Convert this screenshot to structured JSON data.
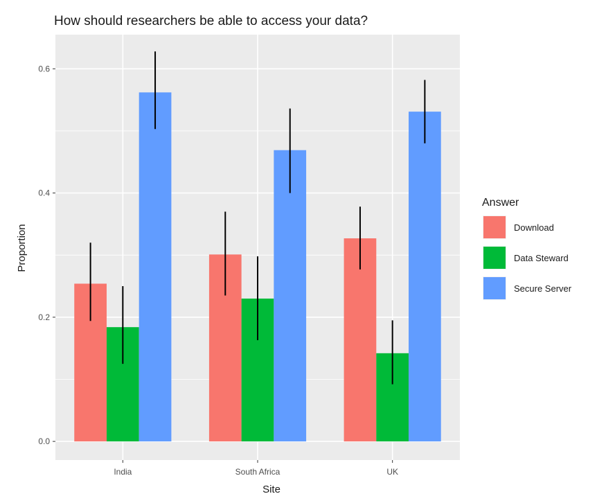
{
  "chart_data": {
    "type": "bar",
    "title": "How should researchers be able to access your data?",
    "xlabel": "Site",
    "ylabel": "Proportion",
    "categories": [
      "India",
      "South Africa",
      "UK"
    ],
    "ylim": [
      -0.03,
      0.655
    ],
    "yticks": [
      0.0,
      0.2,
      0.4,
      0.6
    ],
    "ytick_labels": [
      "0.0",
      "0.2",
      "0.4",
      "0.6"
    ],
    "grid": true,
    "legend": {
      "title": "Answer",
      "placement": "right"
    },
    "error_bars": true,
    "series": [
      {
        "name": "Download",
        "color": "#F8766D",
        "values": [
          0.254,
          0.301,
          0.327
        ],
        "lower": [
          0.194,
          0.235,
          0.277
        ],
        "upper": [
          0.32,
          0.37,
          0.378
        ]
      },
      {
        "name": "Data Steward",
        "color": "#00BA38",
        "values": [
          0.184,
          0.23,
          0.142
        ],
        "lower": [
          0.125,
          0.163,
          0.092
        ],
        "upper": [
          0.25,
          0.298,
          0.195
        ]
      },
      {
        "name": "Secure Server",
        "color": "#619CFF",
        "values": [
          0.562,
          0.469,
          0.531
        ],
        "lower": [
          0.503,
          0.4,
          0.48
        ],
        "upper": [
          0.628,
          0.536,
          0.582
        ]
      }
    ]
  }
}
